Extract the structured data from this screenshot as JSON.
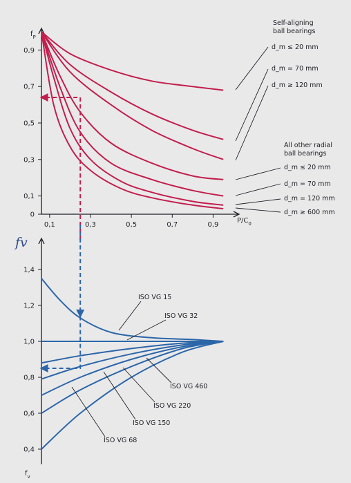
{
  "chart_data": [
    {
      "type": "line",
      "title": "",
      "ylabel_main": "f",
      "ylabel_sub": "P",
      "xlabel_main": "P/C",
      "xlabel_sub": "0",
      "xlim": [
        0.06,
        1.0
      ],
      "ylim": [
        0,
        1.0
      ],
      "x_ticks": [
        0.1,
        0.3,
        0.5,
        0.7,
        0.9
      ],
      "x_tick_labels": [
        "0,1",
        "0,3",
        "0,5",
        "0,7",
        "0,9"
      ],
      "y_ticks": [
        0,
        0.1,
        0.3,
        0.5,
        0.7,
        0.9
      ],
      "y_tick_labels": [
        "0",
        "0,1",
        "0,3",
        "0,5",
        "0,7",
        "0,9"
      ],
      "series": [
        {
          "x": [
            0.06,
            0.2,
            0.4,
            0.6,
            0.8,
            0.95
          ],
          "y": [
            1.0,
            0.88,
            0.79,
            0.73,
            0.7,
            0.68
          ]
        },
        {
          "x": [
            0.06,
            0.2,
            0.4,
            0.6,
            0.8,
            0.95
          ],
          "y": [
            1.0,
            0.82,
            0.67,
            0.55,
            0.46,
            0.41
          ]
        },
        {
          "x": [
            0.06,
            0.2,
            0.4,
            0.6,
            0.8,
            0.95
          ],
          "y": [
            1.0,
            0.78,
            0.6,
            0.46,
            0.36,
            0.3
          ]
        },
        {
          "x": [
            0.06,
            0.15,
            0.25,
            0.4,
            0.6,
            0.8,
            0.95
          ],
          "y": [
            1.0,
            0.76,
            0.56,
            0.39,
            0.28,
            0.21,
            0.19
          ]
        },
        {
          "x": [
            0.06,
            0.15,
            0.25,
            0.4,
            0.6,
            0.8,
            0.95
          ],
          "y": [
            1.0,
            0.7,
            0.45,
            0.28,
            0.19,
            0.13,
            0.1
          ]
        },
        {
          "x": [
            0.06,
            0.12,
            0.2,
            0.3,
            0.45,
            0.6,
            0.8,
            0.95
          ],
          "y": [
            1.0,
            0.75,
            0.47,
            0.3,
            0.18,
            0.12,
            0.07,
            0.05
          ]
        },
        {
          "x": [
            0.06,
            0.12,
            0.2,
            0.3,
            0.45,
            0.6,
            0.8,
            0.95
          ],
          "y": [
            1.0,
            0.6,
            0.37,
            0.24,
            0.14,
            0.09,
            0.05,
            0.03
          ]
        }
      ],
      "example_path": {
        "x": [
          0.25,
          0.25,
          0.06
        ],
        "y": [
          -0.14,
          0.64,
          0.64
        ]
      },
      "annotations": {
        "group1_line1": "Self-aligning",
        "group1_line2": "ball bearings",
        "sa_20": "d_m ≤ 20 mm",
        "sa_70": "d_m = 70 mm",
        "sa_120": "d_m ≥ 120 mm",
        "group2_line1": "All other radial",
        "group2_line2": "ball bearings",
        "or_20": "d_m ≤ 20 mm",
        "or_70": "d_m = 70 mm",
        "or_120": "d_m = 120 mm",
        "or_600": "d_m ≥ 600 mm"
      },
      "colors": {
        "curves": "#c21e4c",
        "axes": "#1f1f24"
      }
    },
    {
      "type": "line",
      "title": "",
      "ylabel_main": "f",
      "ylabel_sub": "v",
      "handwritten_label": "fv",
      "ylim": [
        0.35,
        1.5
      ],
      "y_ticks": [
        0.4,
        0.6,
        0.8,
        1.0,
        1.2,
        1.4
      ],
      "y_tick_labels": [
        "0,4",
        "0,6",
        "0,8",
        "1,0",
        "1,2",
        "1,4"
      ],
      "series": [
        {
          "name": "ISO VG 15",
          "x": [
            0.06,
            0.15,
            0.25,
            0.4,
            0.6,
            0.8,
            0.95
          ],
          "y": [
            1.35,
            1.23,
            1.13,
            1.05,
            1.02,
            1.01,
            1.0
          ]
        },
        {
          "name": "ISO VG 32",
          "x": [
            0.06,
            0.95
          ],
          "y": [
            1.0,
            1.0
          ]
        },
        {
          "name": "ISO VG 460",
          "x": [
            0.06,
            0.25,
            0.5,
            0.75,
            0.95
          ],
          "y": [
            0.88,
            0.92,
            0.96,
            0.99,
            1.0
          ]
        },
        {
          "name": "ISO VG 220",
          "x": [
            0.06,
            0.25,
            0.5,
            0.75,
            0.95
          ],
          "y": [
            0.79,
            0.86,
            0.93,
            0.98,
            1.0
          ]
        },
        {
          "name": "ISO VG 150",
          "x": [
            0.06,
            0.25,
            0.5,
            0.75,
            0.95
          ],
          "y": [
            0.7,
            0.8,
            0.9,
            0.97,
            1.0
          ]
        },
        {
          "name": "",
          "x": [
            0.06,
            0.25,
            0.5,
            0.75,
            0.95
          ],
          "y": [
            0.6,
            0.73,
            0.86,
            0.96,
            1.0
          ]
        },
        {
          "name": "ISO VG 68",
          "x": [
            0.06,
            0.25,
            0.5,
            0.75,
            0.95
          ],
          "y": [
            0.4,
            0.6,
            0.8,
            0.94,
            1.0
          ]
        }
      ],
      "example_path": {
        "x": [
          0.25,
          0.25,
          0.06
        ],
        "y": [
          1.14,
          0.85,
          0.85
        ]
      },
      "colors": {
        "curves": "#2c66a8",
        "axes": "#1f1f24",
        "handwriting": "#2f4a8a"
      }
    }
  ]
}
